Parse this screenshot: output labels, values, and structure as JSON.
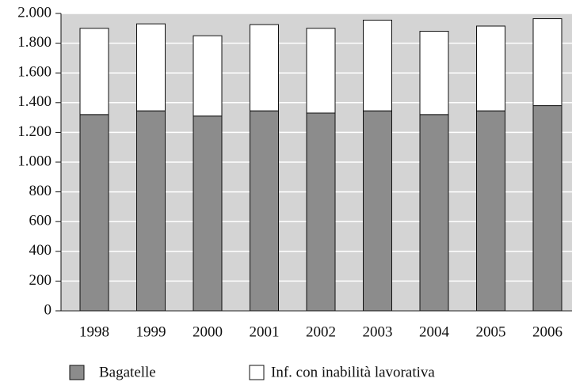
{
  "chart_data": {
    "type": "stacked_bar",
    "categories": [
      "1998",
      "1999",
      "2000",
      "2001",
      "2002",
      "2003",
      "2004",
      "2005",
      "2006"
    ],
    "series": [
      {
        "name": "Bagatelle",
        "color": "#8c8c8c",
        "values": [
          1320,
          1345,
          1310,
          1345,
          1330,
          1345,
          1320,
          1345,
          1380
        ]
      },
      {
        "name": "Inf. con inabilità lavorativa",
        "color": "#ffffff",
        "values": [
          580,
          585,
          540,
          580,
          570,
          610,
          560,
          570,
          585
        ]
      }
    ],
    "ylim": [
      0,
      2000
    ],
    "yticks": [
      0,
      200,
      400,
      600,
      800,
      {
        "value": 1000,
        "label": "1.000"
      },
      {
        "value": 1200,
        "label": "1.200"
      },
      {
        "value": 1400,
        "label": "1.400"
      },
      {
        "value": 1600,
        "label": "1.600"
      },
      {
        "value": 1800,
        "label": "1.800"
      },
      {
        "value": 2000,
        "label": "2.000"
      }
    ],
    "grid": true
  }
}
